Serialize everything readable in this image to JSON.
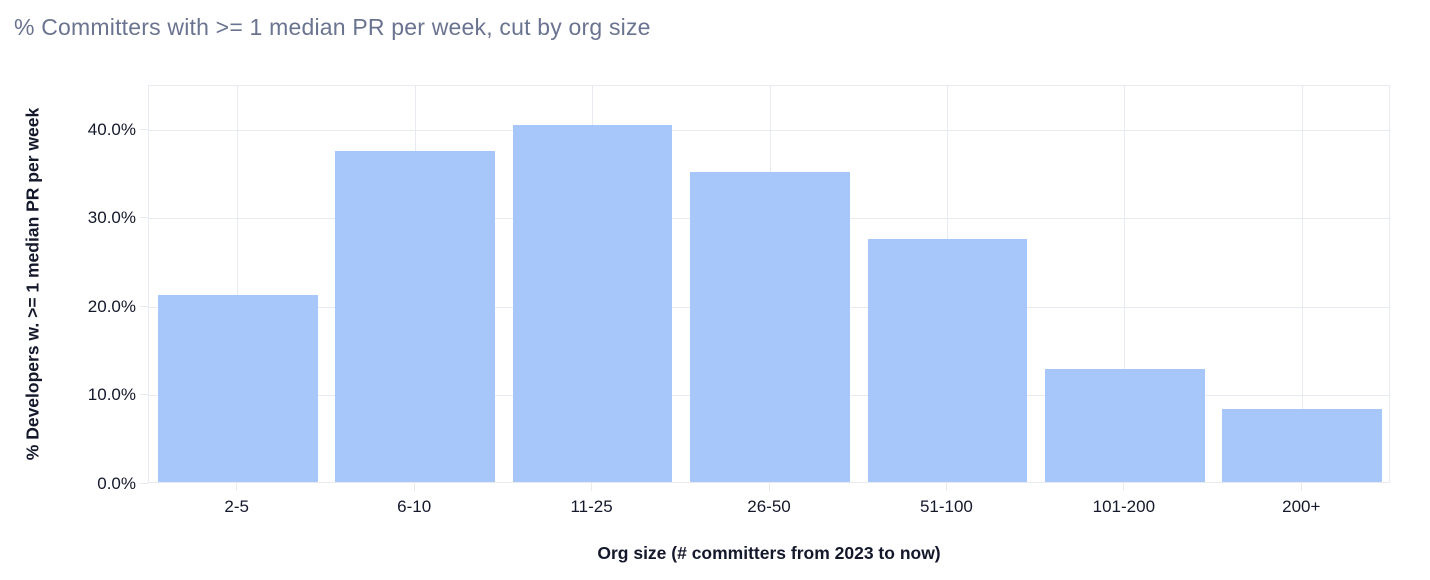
{
  "title": "% Committers with >= 1 median PR per week, cut by org size",
  "chart_data": {
    "type": "bar",
    "title": "% Committers with >= 1 median PR per week, cut by org size",
    "categories": [
      "2-5",
      "6-10",
      "11-25",
      "26-50",
      "51-100",
      "101-200",
      "200+"
    ],
    "values": [
      21.2,
      37.4,
      40.4,
      35.0,
      27.5,
      12.8,
      8.3
    ],
    "xlabel": "Org size (# committers from 2023 to now)",
    "ylabel": "% Developers w. >= 1 median PR per week",
    "ylim": [
      0,
      45
    ],
    "yticks": [
      0,
      10,
      20,
      30,
      40
    ],
    "ytick_labels": [
      "0.0%",
      "10.0%",
      "20.0%",
      "30.0%",
      "40.0%"
    ],
    "grid": true,
    "legend": "none",
    "colors": {
      "bar_fill": "#a7c7fa",
      "grid": "#e8eaf1",
      "plot_border": "#e8eaf1",
      "tick_text": "#14182b",
      "axis_title_text": "#14182b",
      "title_text": "#6a7490",
      "background": "#ffffff"
    }
  }
}
